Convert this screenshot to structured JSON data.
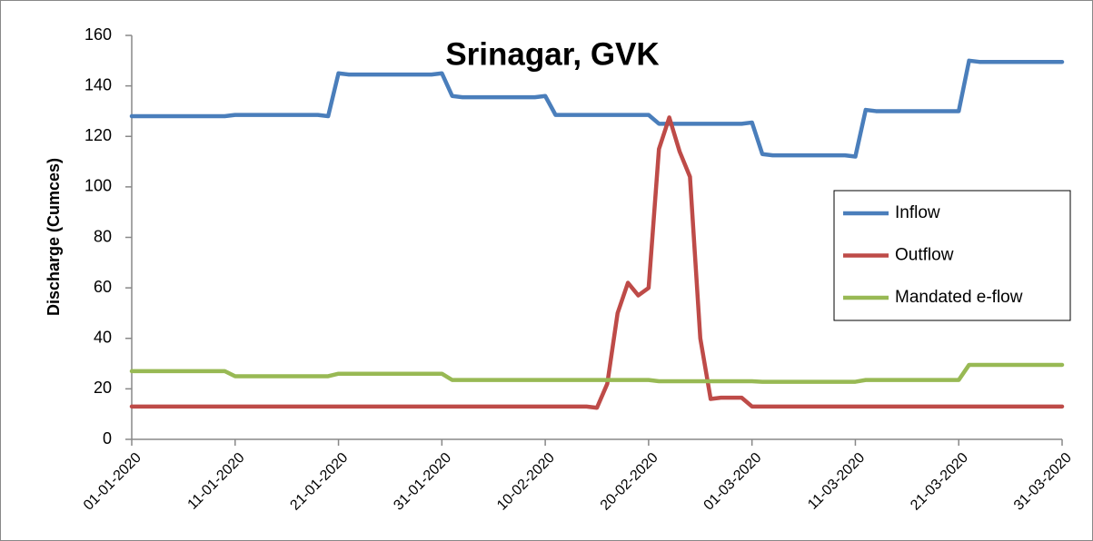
{
  "chart_data": {
    "type": "line",
    "title": "Srinagar, GVK",
    "y_label": "Discharge (Cumces)",
    "categories": [
      "01-01-2020",
      null,
      null,
      null,
      null,
      null,
      null,
      null,
      null,
      null,
      "11-01-2020",
      null,
      null,
      null,
      null,
      null,
      null,
      null,
      null,
      null,
      "21-01-2020",
      null,
      null,
      null,
      null,
      null,
      null,
      null,
      null,
      null,
      "31-01-2020",
      null,
      null,
      null,
      null,
      null,
      null,
      null,
      null,
      null,
      "10-02-2020",
      null,
      null,
      null,
      null,
      null,
      null,
      null,
      null,
      null,
      "20-02-2020",
      null,
      null,
      null,
      null,
      null,
      null,
      null,
      null,
      null,
      "01-03-2020",
      null,
      null,
      null,
      null,
      null,
      null,
      null,
      null,
      null,
      "11-03-2020",
      null,
      null,
      null,
      null,
      null,
      null,
      null,
      null,
      null,
      "21-03-2020",
      null,
      null,
      null,
      null,
      null,
      null,
      null,
      null,
      null,
      "31-03-2020"
    ],
    "series": [
      {
        "name": "Inflow",
        "color": "#4a7ebb",
        "values": [
          128,
          128,
          128,
          128,
          128,
          128,
          128,
          128,
          128,
          128,
          128.5,
          128.5,
          128.5,
          128.5,
          128.5,
          128.5,
          128.5,
          128.5,
          128.5,
          128,
          145,
          144.5,
          144.5,
          144.5,
          144.5,
          144.5,
          144.5,
          144.5,
          144.5,
          144.5,
          145,
          136,
          135.5,
          135.5,
          135.5,
          135.5,
          135.5,
          135.5,
          135.5,
          135.5,
          136,
          128.5,
          128.5,
          128.5,
          128.5,
          128.5,
          128.5,
          128.5,
          128.5,
          128.5,
          128.5,
          125,
          125,
          125,
          125,
          125,
          125,
          125,
          125,
          125,
          125.5,
          113,
          112.5,
          112.5,
          112.5,
          112.5,
          112.5,
          112.5,
          112.5,
          112.5,
          112,
          130.5,
          130,
          130,
          130,
          130,
          130,
          130,
          130,
          130,
          130,
          150,
          149.5,
          149.5,
          149.5,
          149.5,
          149.5,
          149.5,
          149.5,
          149.5,
          149.5
        ]
      },
      {
        "name": "Outflow",
        "color": "#be4b48",
        "values": [
          13,
          13,
          13,
          13,
          13,
          13,
          13,
          13,
          13,
          13,
          13,
          13,
          13,
          13,
          13,
          13,
          13,
          13,
          13,
          13,
          13,
          13,
          13,
          13,
          13,
          13,
          13,
          13,
          13,
          13,
          13,
          13,
          13,
          13,
          13,
          13,
          13,
          13,
          13,
          13,
          13,
          13,
          13,
          13,
          13,
          12.5,
          22,
          50,
          62,
          57,
          60,
          115,
          127.5,
          114,
          104,
          40,
          16,
          16.5,
          16.5,
          16.5,
          13,
          13,
          13,
          13,
          13,
          13,
          13,
          13,
          13,
          13,
          13,
          13,
          13,
          13,
          13,
          13,
          13,
          13,
          13,
          13,
          13,
          13,
          13,
          13,
          13,
          13,
          13,
          13,
          13,
          13,
          13
        ]
      },
      {
        "name": "Mandated e-flow",
        "color": "#98b954",
        "values": [
          27,
          27,
          27,
          27,
          27,
          27,
          27,
          27,
          27,
          27,
          25,
          25,
          25,
          25,
          25,
          25,
          25,
          25,
          25,
          25,
          26,
          26,
          26,
          26,
          26,
          26,
          26,
          26,
          26,
          26,
          26,
          23.5,
          23.5,
          23.5,
          23.5,
          23.5,
          23.5,
          23.5,
          23.5,
          23.5,
          23.5,
          23.5,
          23.5,
          23.5,
          23.5,
          23.5,
          23.5,
          23.5,
          23.5,
          23.5,
          23.5,
          23,
          23,
          23,
          23,
          23,
          23,
          23,
          23,
          23,
          23,
          22.8,
          22.8,
          22.8,
          22.8,
          22.8,
          22.8,
          22.8,
          22.8,
          22.8,
          22.8,
          23.5,
          23.5,
          23.5,
          23.5,
          23.5,
          23.5,
          23.5,
          23.5,
          23.5,
          23.5,
          29.5,
          29.5,
          29.5,
          29.5,
          29.5,
          29.5,
          29.5,
          29.5,
          29.5,
          29.5
        ]
      }
    ],
    "ylim": [
      0,
      160
    ],
    "yticks": [
      0,
      20,
      40,
      60,
      80,
      100,
      120,
      140,
      160
    ],
    "grid": false,
    "legend": "right"
  }
}
